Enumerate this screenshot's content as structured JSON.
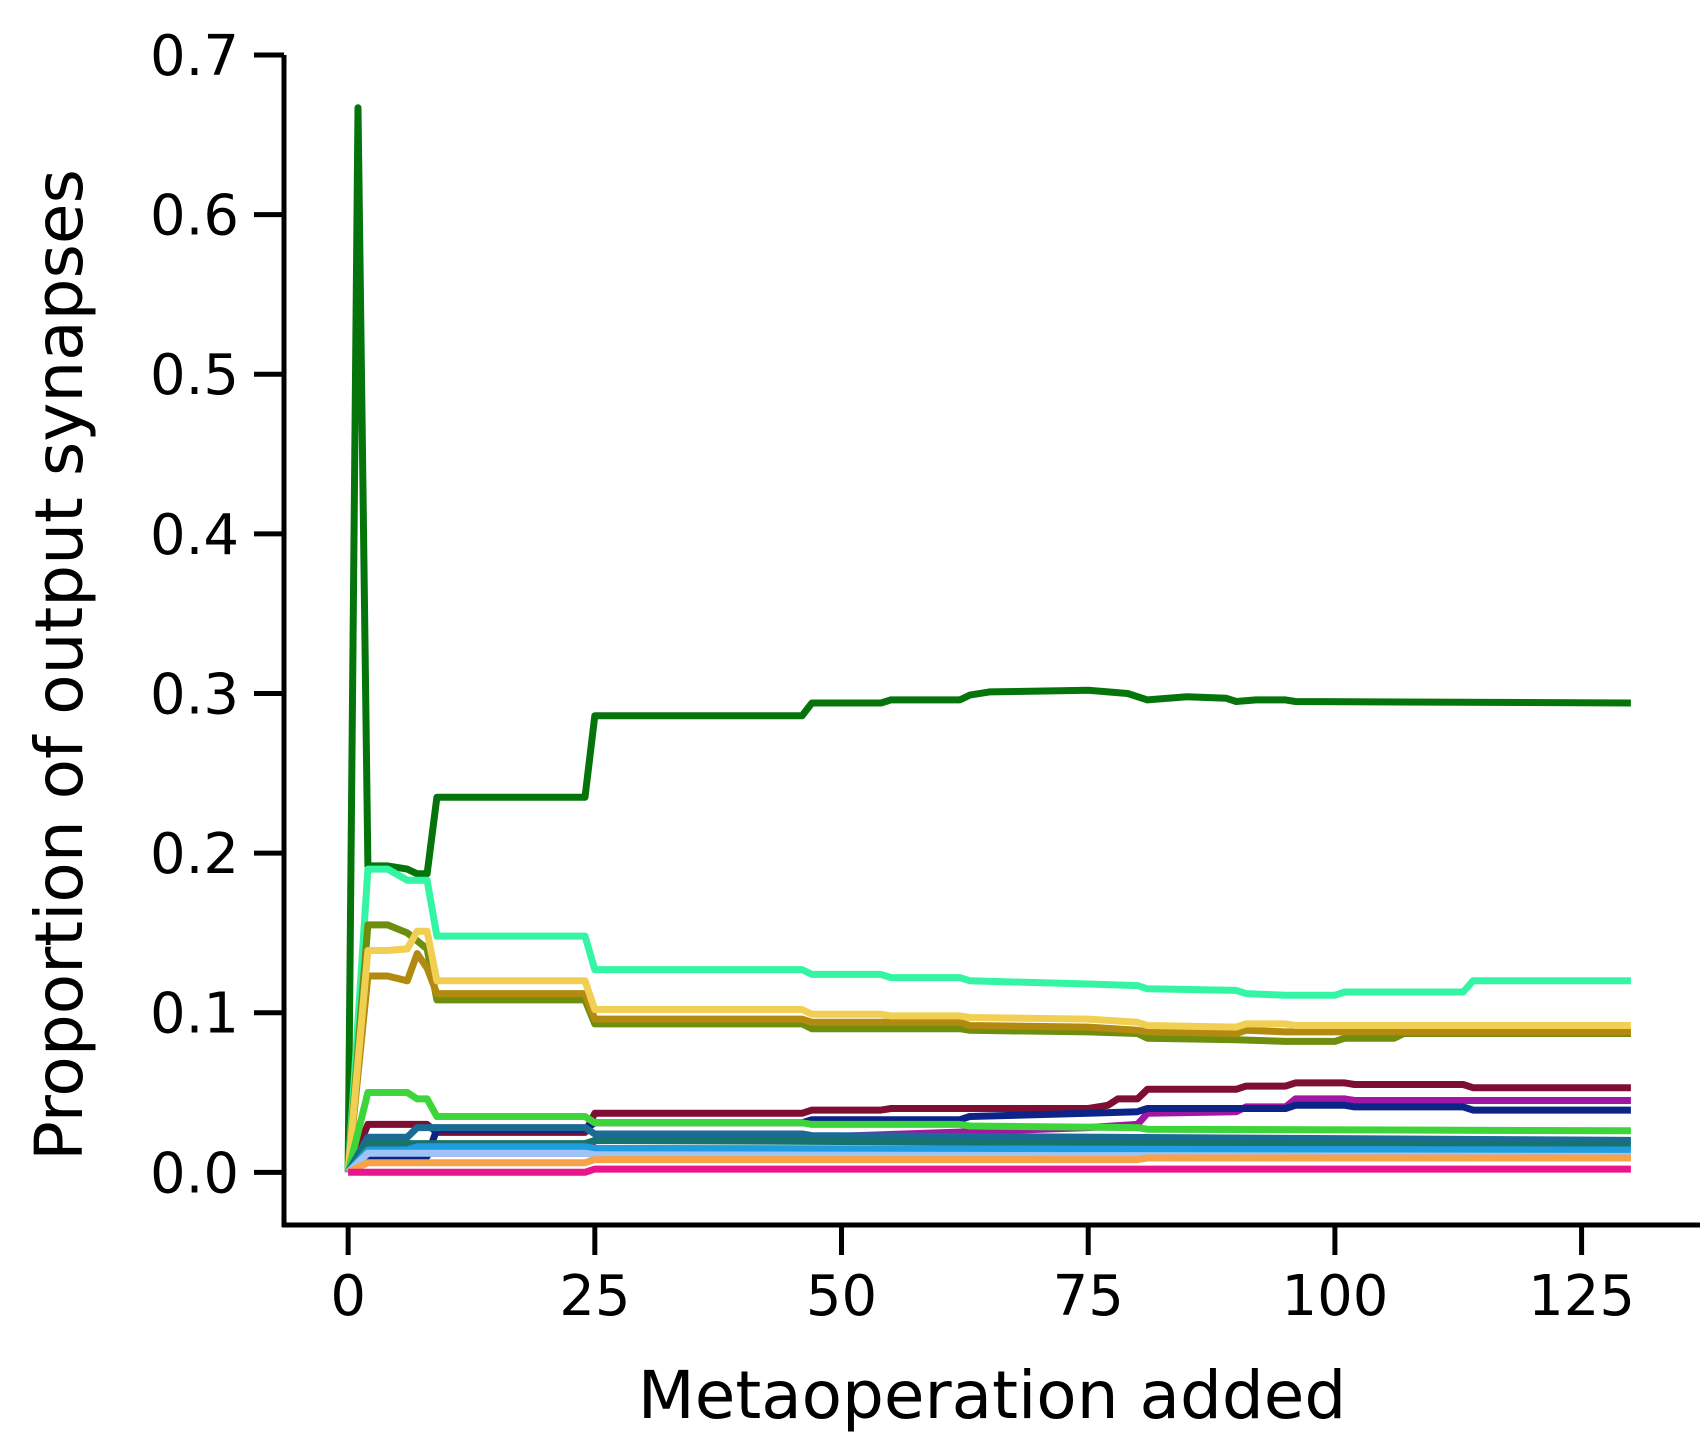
{
  "chart_data": {
    "type": "line",
    "title": "",
    "xlabel": "Metaoperation added",
    "ylabel": "Proportion of output synapses",
    "xlim": [
      -6.5,
      137
    ],
    "ylim": [
      -0.033,
      0.7
    ],
    "xticks": [
      0,
      25,
      50,
      75,
      100,
      125
    ],
    "yticks": [
      0.0,
      0.1,
      0.2,
      0.3,
      0.4,
      0.5,
      0.6,
      0.7
    ],
    "xtick_labels": [
      "0",
      "25",
      "50",
      "75",
      "100",
      "125"
    ],
    "ytick_labels": [
      "0.0",
      "0.1",
      "0.2",
      "0.3",
      "0.4",
      "0.5",
      "0.6",
      "0.7"
    ],
    "grid": false,
    "legend": "none",
    "series": [
      {
        "color": "#05740b",
        "points": [
          [
            0,
            0
          ],
          [
            1,
            0.667
          ],
          [
            2,
            0.192
          ],
          [
            4,
            0.192
          ],
          [
            6,
            0.19
          ],
          [
            7,
            0.187
          ],
          [
            8,
            0.187
          ],
          [
            9,
            0.235
          ],
          [
            24,
            0.235
          ],
          [
            25,
            0.286
          ],
          [
            46,
            0.286
          ],
          [
            47,
            0.294
          ],
          [
            54,
            0.294
          ],
          [
            55,
            0.296
          ],
          [
            62,
            0.296
          ],
          [
            63,
            0.299
          ],
          [
            65,
            0.301
          ],
          [
            75,
            0.302
          ],
          [
            79,
            0.3
          ],
          [
            81,
            0.296
          ],
          [
            85,
            0.298
          ],
          [
            89,
            0.297
          ],
          [
            90,
            0.295
          ],
          [
            92,
            0.296
          ],
          [
            95,
            0.296
          ],
          [
            96,
            0.295
          ],
          [
            130,
            0.294
          ]
        ]
      },
      {
        "color": "#33f5a3",
        "points": [
          [
            0,
            0
          ],
          [
            2,
            0.19
          ],
          [
            4,
            0.19
          ],
          [
            6,
            0.183
          ],
          [
            8,
            0.183
          ],
          [
            9,
            0.148
          ],
          [
            24,
            0.148
          ],
          [
            25,
            0.127
          ],
          [
            46,
            0.127
          ],
          [
            47,
            0.124
          ],
          [
            54,
            0.124
          ],
          [
            55,
            0.122
          ],
          [
            62,
            0.122
          ],
          [
            63,
            0.12
          ],
          [
            75,
            0.118
          ],
          [
            80,
            0.117
          ],
          [
            81,
            0.115
          ],
          [
            90,
            0.114
          ],
          [
            91,
            0.112
          ],
          [
            95,
            0.111
          ],
          [
            100,
            0.111
          ],
          [
            101,
            0.113
          ],
          [
            113,
            0.113
          ],
          [
            114,
            0.12
          ],
          [
            130,
            0.12
          ]
        ]
      },
      {
        "color": "#6f8e0e",
        "points": [
          [
            0,
            0
          ],
          [
            2,
            0.155
          ],
          [
            4,
            0.155
          ],
          [
            6,
            0.15
          ],
          [
            8,
            0.14
          ],
          [
            9,
            0.108
          ],
          [
            24,
            0.108
          ],
          [
            25,
            0.093
          ],
          [
            46,
            0.093
          ],
          [
            47,
            0.09
          ],
          [
            62,
            0.09
          ],
          [
            63,
            0.089
          ],
          [
            75,
            0.088
          ],
          [
            80,
            0.087
          ],
          [
            81,
            0.084
          ],
          [
            90,
            0.083
          ],
          [
            95,
            0.082
          ],
          [
            100,
            0.082
          ],
          [
            101,
            0.084
          ],
          [
            106,
            0.084
          ],
          [
            107,
            0.087
          ],
          [
            130,
            0.087
          ]
        ]
      },
      {
        "color": "#b38a10",
        "points": [
          [
            0,
            0
          ],
          [
            2,
            0.123
          ],
          [
            4,
            0.123
          ],
          [
            6,
            0.12
          ],
          [
            7,
            0.137
          ],
          [
            8,
            0.128
          ],
          [
            9,
            0.112
          ],
          [
            24,
            0.112
          ],
          [
            25,
            0.096
          ],
          [
            46,
            0.096
          ],
          [
            47,
            0.094
          ],
          [
            62,
            0.094
          ],
          [
            63,
            0.092
          ],
          [
            75,
            0.091
          ],
          [
            80,
            0.089
          ],
          [
            81,
            0.088
          ],
          [
            90,
            0.087
          ],
          [
            91,
            0.089
          ],
          [
            95,
            0.088
          ],
          [
            100,
            0.088
          ],
          [
            130,
            0.088
          ]
        ]
      },
      {
        "color": "#f0cf52",
        "points": [
          [
            0,
            0
          ],
          [
            2,
            0.139
          ],
          [
            4,
            0.139
          ],
          [
            6,
            0.14
          ],
          [
            7,
            0.151
          ],
          [
            8,
            0.151
          ],
          [
            9,
            0.12
          ],
          [
            24,
            0.12
          ],
          [
            25,
            0.102
          ],
          [
            46,
            0.102
          ],
          [
            47,
            0.099
          ],
          [
            54,
            0.099
          ],
          [
            55,
            0.098
          ],
          [
            62,
            0.098
          ],
          [
            63,
            0.097
          ],
          [
            75,
            0.096
          ],
          [
            80,
            0.094
          ],
          [
            81,
            0.092
          ],
          [
            90,
            0.091
          ],
          [
            91,
            0.093
          ],
          [
            95,
            0.093
          ],
          [
            96,
            0.092
          ],
          [
            130,
            0.092
          ]
        ]
      },
      {
        "color": "#7e0f33",
        "points": [
          [
            0,
            0
          ],
          [
            2,
            0.03
          ],
          [
            8,
            0.03
          ],
          [
            9,
            0.025
          ],
          [
            24,
            0.025
          ],
          [
            25,
            0.037
          ],
          [
            46,
            0.037
          ],
          [
            47,
            0.039
          ],
          [
            54,
            0.039
          ],
          [
            55,
            0.04
          ],
          [
            75,
            0.04
          ],
          [
            77,
            0.042
          ],
          [
            78,
            0.046
          ],
          [
            80,
            0.046
          ],
          [
            81,
            0.052
          ],
          [
            90,
            0.052
          ],
          [
            91,
            0.054
          ],
          [
            95,
            0.054
          ],
          [
            96,
            0.056
          ],
          [
            101,
            0.056
          ],
          [
            102,
            0.055
          ],
          [
            113,
            0.055
          ],
          [
            114,
            0.053
          ],
          [
            130,
            0.053
          ]
        ]
      },
      {
        "color": "#a116a2",
        "points": [
          [
            0,
            0
          ],
          [
            2,
            0.012
          ],
          [
            24,
            0.012
          ],
          [
            25,
            0.02
          ],
          [
            46,
            0.02
          ],
          [
            47,
            0.022
          ],
          [
            75,
            0.028
          ],
          [
            80,
            0.03
          ],
          [
            81,
            0.037
          ],
          [
            90,
            0.038
          ],
          [
            91,
            0.041
          ],
          [
            95,
            0.041
          ],
          [
            96,
            0.046
          ],
          [
            101,
            0.046
          ],
          [
            102,
            0.045
          ],
          [
            130,
            0.045
          ]
        ]
      },
      {
        "color": "#0c2388",
        "points": [
          [
            0,
            0
          ],
          [
            2,
            0.01
          ],
          [
            8,
            0.01
          ],
          [
            9,
            0.027
          ],
          [
            24,
            0.027
          ],
          [
            25,
            0.031
          ],
          [
            46,
            0.031
          ],
          [
            47,
            0.033
          ],
          [
            62,
            0.033
          ],
          [
            63,
            0.035
          ],
          [
            75,
            0.037
          ],
          [
            80,
            0.038
          ],
          [
            81,
            0.04
          ],
          [
            95,
            0.04
          ],
          [
            96,
            0.042
          ],
          [
            101,
            0.042
          ],
          [
            102,
            0.041
          ],
          [
            113,
            0.041
          ],
          [
            114,
            0.039
          ],
          [
            130,
            0.039
          ]
        ]
      },
      {
        "color": "#3dd53a",
        "points": [
          [
            0,
            0
          ],
          [
            2,
            0.05
          ],
          [
            6,
            0.05
          ],
          [
            7,
            0.046
          ],
          [
            8,
            0.046
          ],
          [
            9,
            0.035
          ],
          [
            24,
            0.035
          ],
          [
            25,
            0.031
          ],
          [
            46,
            0.031
          ],
          [
            47,
            0.03
          ],
          [
            62,
            0.03
          ],
          [
            63,
            0.029
          ],
          [
            80,
            0.028
          ],
          [
            81,
            0.027
          ],
          [
            130,
            0.026
          ]
        ]
      },
      {
        "color": "#1a6b95",
        "points": [
          [
            0,
            0
          ],
          [
            2,
            0.022
          ],
          [
            6,
            0.022
          ],
          [
            7,
            0.028
          ],
          [
            9,
            0.028
          ],
          [
            24,
            0.028
          ],
          [
            25,
            0.024
          ],
          [
            46,
            0.024
          ],
          [
            47,
            0.023
          ],
          [
            130,
            0.02
          ]
        ]
      },
      {
        "color": "#17736b",
        "points": [
          [
            0,
            0
          ],
          [
            2,
            0.018
          ],
          [
            24,
            0.018
          ],
          [
            25,
            0.02
          ],
          [
            130,
            0.017
          ]
        ]
      },
      {
        "color": "#1f9de0",
        "points": [
          [
            0,
            0
          ],
          [
            2,
            0.014
          ],
          [
            6,
            0.014
          ],
          [
            7,
            0.016
          ],
          [
            9,
            0.016
          ],
          [
            24,
            0.016
          ],
          [
            25,
            0.015
          ],
          [
            130,
            0.014
          ]
        ]
      },
      {
        "color": "#9ec4f5",
        "points": [
          [
            0,
            0
          ],
          [
            2,
            0.012
          ],
          [
            6,
            0.012
          ],
          [
            7,
            0.012
          ],
          [
            9,
            0.012
          ],
          [
            24,
            0.012
          ],
          [
            25,
            0.011
          ],
          [
            130,
            0.01
          ]
        ]
      },
      {
        "color": "#f7a248",
        "points": [
          [
            0,
            0
          ],
          [
            2,
            0.006
          ],
          [
            24,
            0.006
          ],
          [
            25,
            0.008
          ],
          [
            80,
            0.008
          ],
          [
            81,
            0.009
          ],
          [
            130,
            0.009
          ]
        ]
      },
      {
        "color": "#e8158c",
        "points": [
          [
            0,
            0
          ],
          [
            2,
            0.0
          ],
          [
            24,
            0.0
          ],
          [
            25,
            0.002
          ],
          [
            130,
            0.002
          ]
        ]
      }
    ]
  }
}
